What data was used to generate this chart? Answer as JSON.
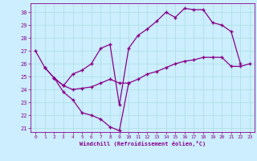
{
  "xlabel": "Windchill (Refroidissement éolien,°C)",
  "xlim": [
    -0.5,
    23.5
  ],
  "ylim": [
    20.7,
    30.7
  ],
  "yticks": [
    21,
    22,
    23,
    24,
    25,
    26,
    27,
    28,
    29,
    30
  ],
  "xticks": [
    0,
    1,
    2,
    3,
    4,
    5,
    6,
    7,
    8,
    9,
    10,
    11,
    12,
    13,
    14,
    15,
    16,
    17,
    18,
    19,
    20,
    21,
    22,
    23
  ],
  "bg_color": "#cceeff",
  "line_color": "#880088",
  "grid_color": "#aadddd",
  "series": [
    {
      "x": [
        0,
        1,
        2,
        3,
        4,
        5,
        6,
        7,
        8,
        9,
        10,
        11,
        12,
        13,
        14,
        15,
        16,
        17,
        18,
        19,
        20,
        21,
        22
      ],
      "y": [
        27.0,
        25.7,
        24.9,
        24.3,
        25.2,
        25.5,
        26.0,
        27.2,
        27.5,
        22.8,
        27.2,
        28.2,
        28.7,
        29.3,
        30.0,
        29.6,
        30.3,
        30.2,
        30.2,
        29.2,
        29.0,
        28.5,
        26.0
      ]
    },
    {
      "x": [
        2,
        3,
        4,
        5,
        6,
        7,
        8,
        9,
        10
      ],
      "y": [
        24.9,
        23.8,
        23.2,
        22.2,
        22.0,
        21.7,
        21.1,
        20.8,
        24.5
      ]
    },
    {
      "x": [
        1,
        2,
        3,
        4,
        5,
        6,
        7,
        8,
        9,
        10,
        11,
        12,
        13,
        14,
        15,
        16,
        17,
        18,
        19,
        20,
        21,
        22,
        23
      ],
      "y": [
        25.7,
        24.9,
        24.3,
        24.0,
        24.1,
        24.2,
        24.5,
        24.8,
        24.5,
        24.5,
        24.8,
        25.2,
        25.4,
        25.7,
        26.0,
        26.2,
        26.3,
        26.5,
        26.5,
        26.5,
        25.8,
        25.8,
        26.0
      ]
    }
  ]
}
